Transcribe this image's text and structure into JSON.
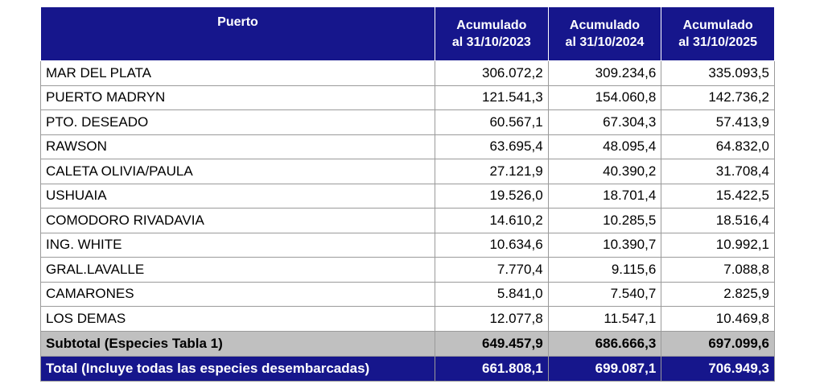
{
  "table": {
    "header": [
      [
        "Puerto"
      ],
      [
        "Acumulado",
        "al 31/10/2023"
      ],
      [
        "Acumulado",
        "al 31/10/2024"
      ],
      [
        "Acumulado",
        "al 31/10/2025"
      ]
    ],
    "rows": [
      [
        "MAR DEL PLATA",
        "306.072,2",
        "309.234,6",
        "335.093,5"
      ],
      [
        "PUERTO MADRYN",
        "121.541,3",
        "154.060,8",
        "142.736,2"
      ],
      [
        "PTO. DESEADO",
        "60.567,1",
        "67.304,3",
        "57.413,9"
      ],
      [
        "RAWSON",
        "63.695,4",
        "48.095,4",
        "64.832,0"
      ],
      [
        "CALETA OLIVIA/PAULA",
        "27.121,9",
        "40.390,2",
        "31.708,4"
      ],
      [
        "USHUAIA",
        "19.526,0",
        "18.701,4",
        "15.422,5"
      ],
      [
        "COMODORO RIVADAVIA",
        "14.610,2",
        "10.285,5",
        "18.516,4"
      ],
      [
        "ING. WHITE",
        "10.634,6",
        "10.390,7",
        "10.992,1"
      ],
      [
        "GRAL.LAVALLE",
        "7.770,4",
        "9.115,6",
        "7.088,8"
      ],
      [
        "CAMARONES",
        "5.841,0",
        "7.540,7",
        "2.825,9"
      ],
      [
        "LOS DEMAS",
        "12.077,8",
        "11.547,1",
        "10.469,8"
      ]
    ],
    "subtotal": [
      "Subtotal (Especies Tabla 1)",
      "649.457,9",
      "686.666,3",
      "697.099,6"
    ],
    "total": [
      "Total (Incluye todas las especies desembarcadas)",
      "661.808,1",
      "699.087,1",
      "706.949,3"
    ]
  }
}
